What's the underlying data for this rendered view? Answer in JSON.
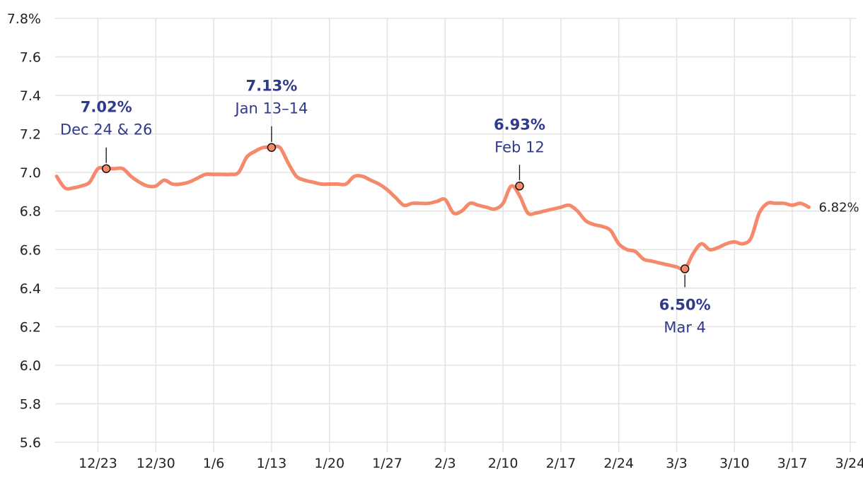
{
  "colors": {
    "line": "#f5896b",
    "grid": "#e3e3e3",
    "annotation_text": "#2f3a8c",
    "marker_stroke": "#111111",
    "axis_text": "#222222"
  },
  "chart_data": {
    "type": "line",
    "title": "",
    "xlabel": "",
    "ylabel": "",
    "ylim": [
      5.6,
      7.8
    ],
    "y_ticks": [
      "5.6",
      "5.8",
      "6.0",
      "6.2",
      "6.4",
      "6.6",
      "6.8",
      "7.0",
      "7.2",
      "7.4",
      "7.6",
      "7.8%"
    ],
    "x_ticks": [
      "12/23",
      "12/30",
      "1/6",
      "1/13",
      "1/20",
      "1/27",
      "2/3",
      "2/10",
      "2/17",
      "2/24",
      "3/3",
      "3/10",
      "3/17",
      "3/24"
    ],
    "grid": true,
    "series": [
      {
        "x": [
          "12/18",
          "12/19",
          "12/20",
          "12/21",
          "12/22",
          "12/23",
          "12/24",
          "12/25",
          "12/26",
          "12/27",
          "12/28",
          "12/29",
          "12/30",
          "12/31",
          "1/1",
          "1/2",
          "1/3",
          "1/4",
          "1/5",
          "1/6",
          "1/7",
          "1/8",
          "1/9",
          "1/10",
          "1/11",
          "1/12",
          "1/13",
          "1/14",
          "1/15",
          "1/16",
          "1/17",
          "1/18",
          "1/19",
          "1/20",
          "1/21",
          "1/22",
          "1/23",
          "1/24",
          "1/25",
          "1/26",
          "1/27",
          "1/28",
          "1/29",
          "1/30",
          "1/31",
          "2/1",
          "2/2",
          "2/3",
          "2/4",
          "2/5",
          "2/6",
          "2/7",
          "2/8",
          "2/9",
          "2/10",
          "2/11",
          "2/12",
          "2/13",
          "2/14",
          "2/15",
          "2/16",
          "2/17",
          "2/18",
          "2/19",
          "2/20",
          "2/21",
          "2/22",
          "2/23",
          "2/24",
          "2/25",
          "2/26",
          "2/27",
          "2/28",
          "3/1",
          "3/2",
          "3/3",
          "3/4",
          "3/5",
          "3/6",
          "3/7",
          "3/8",
          "3/9",
          "3/10",
          "3/11",
          "3/12",
          "3/13",
          "3/14",
          "3/15",
          "3/16",
          "3/17",
          "3/18",
          "3/19"
        ],
        "values": [
          6.98,
          6.92,
          6.92,
          6.93,
          6.95,
          7.02,
          7.02,
          7.02,
          7.02,
          6.98,
          6.95,
          6.93,
          6.93,
          6.96,
          6.94,
          6.94,
          6.95,
          6.97,
          6.99,
          6.99,
          6.99,
          6.99,
          7.0,
          7.08,
          7.11,
          7.13,
          7.13,
          7.13,
          7.05,
          6.98,
          6.96,
          6.95,
          6.94,
          6.94,
          6.94,
          6.94,
          6.98,
          6.98,
          6.96,
          6.94,
          6.91,
          6.87,
          6.83,
          6.84,
          6.84,
          6.84,
          6.85,
          6.86,
          6.79,
          6.8,
          6.84,
          6.83,
          6.82,
          6.81,
          6.84,
          6.93,
          6.88,
          6.79,
          6.79,
          6.8,
          6.81,
          6.82,
          6.83,
          6.8,
          6.75,
          6.73,
          6.72,
          6.7,
          6.63,
          6.6,
          6.59,
          6.55,
          6.54,
          6.53,
          6.52,
          6.51,
          6.5,
          6.58,
          6.63,
          6.6,
          6.61,
          6.63,
          6.64,
          6.63,
          6.66,
          6.79,
          6.84,
          6.84,
          6.84,
          6.83,
          6.84,
          6.82
        ]
      }
    ],
    "annotations": [
      {
        "date": "12/24",
        "value": 7.02,
        "value_label": "7.02%",
        "date_label": "Dec 24 & 26",
        "position": "above"
      },
      {
        "date": "1/13",
        "value": 7.13,
        "value_label": "7.13%",
        "date_label": "Jan 13–14",
        "position": "above"
      },
      {
        "date": "2/12",
        "value": 6.93,
        "value_label": "6.93%",
        "date_label": "Feb 12",
        "position": "above"
      },
      {
        "date": "3/4",
        "value": 6.5,
        "value_label": "6.50%",
        "date_label": "Mar 4",
        "position": "below"
      }
    ],
    "end_label": "6.82%"
  }
}
